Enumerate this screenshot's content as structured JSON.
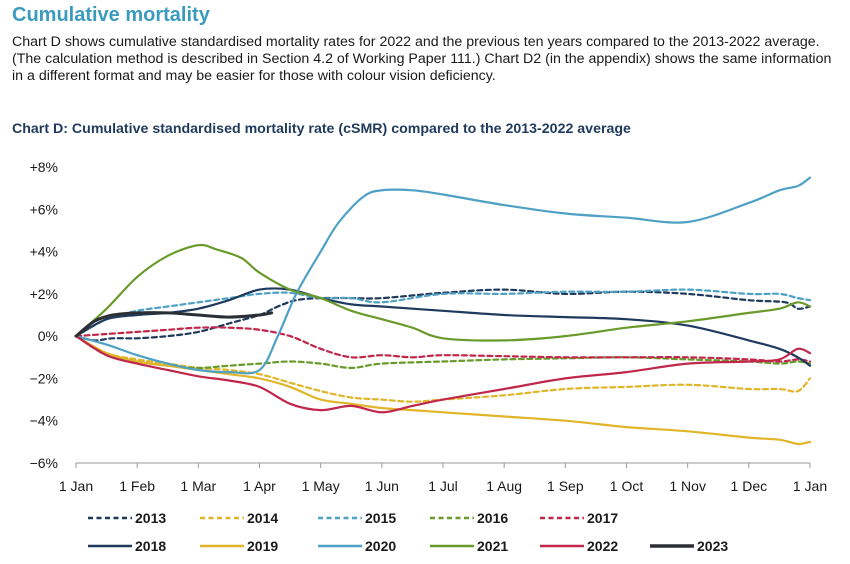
{
  "section_heading": "Cumulative mortality",
  "intro_text": "Chart D shows cumulative standardised mortality rates for 2022 and the previous ten years compared to the 2013-2022 average. (The calculation method is described in Section 4.2 of Working Paper 111.) Chart D2 (in the appendix) shows the same information in a different format and may be easier for those with colour vision deficiency.",
  "chart_data": {
    "type": "line",
    "title": "Chart D: Cumulative standardised mortality rate (cSMR) compared to the 2013-2022 average",
    "xlabel": "",
    "ylabel": "",
    "x_ticks": [
      "1 Jan",
      "1 Feb",
      "1 Mar",
      "1 Apr",
      "1 May",
      "1 Jun",
      "1 Jul",
      "1 Aug",
      "1 Sep",
      "1 Oct",
      "1 Nov",
      "1 Dec",
      "1 Jan"
    ],
    "y_ticks": [
      "+8%",
      "+6%",
      "+4%",
      "+2%",
      "0%",
      "−2%",
      "−4%",
      "−6%"
    ],
    "ylim": [
      -6,
      8
    ],
    "grid": false,
    "legend_position": "bottom",
    "x_units": "month of year (0 = 1 Jan, 12 = 1 Jan following year)",
    "series": [
      {
        "name": "2013",
        "color": "#1f3a5c",
        "dash": true,
        "x": [
          0,
          0.3,
          0.6,
          1,
          1.5,
          2,
          2.5,
          3,
          3.3,
          3.6,
          4,
          4.5,
          5,
          6,
          7,
          8,
          9,
          10,
          11,
          11.6,
          11.8,
          12
        ],
        "y": [
          0,
          -0.2,
          -0.1,
          -0.1,
          0,
          0.2,
          0.6,
          1,
          1.4,
          1.7,
          1.8,
          1.8,
          1.8,
          2.05,
          2.2,
          2.0,
          2.1,
          2.0,
          1.7,
          1.6,
          1.3,
          1.4
        ]
      },
      {
        "name": "2014",
        "color": "#e0b52a",
        "dash": true,
        "x": [
          0,
          0.5,
          1,
          1.5,
          2,
          2.5,
          3,
          3.5,
          4,
          4.5,
          5,
          5.5,
          6,
          7,
          8,
          9,
          10,
          11,
          11.5,
          11.8,
          12
        ],
        "y": [
          0,
          -0.8,
          -1.1,
          -1.3,
          -1.5,
          -1.6,
          -1.8,
          -2.2,
          -2.6,
          -2.9,
          -3.0,
          -3.1,
          -3.0,
          -2.8,
          -2.5,
          -2.4,
          -2.3,
          -2.5,
          -2.5,
          -2.6,
          -2.0
        ]
      },
      {
        "name": "2015",
        "color": "#4ea1c4",
        "dash": true,
        "x": [
          0,
          0.5,
          1,
          1.5,
          2,
          2.5,
          3,
          3.5,
          4,
          4.5,
          5,
          6,
          7,
          8,
          9,
          10,
          11,
          11.5,
          11.8,
          12
        ],
        "y": [
          0,
          0.8,
          1.2,
          1.4,
          1.6,
          1.8,
          2.0,
          2.05,
          1.8,
          1.8,
          1.6,
          2.0,
          2.0,
          2.1,
          2.1,
          2.2,
          2.0,
          2.0,
          1.8,
          1.7
        ]
      },
      {
        "name": "2016",
        "color": "#6a9a2b",
        "dash": true,
        "x": [
          0,
          0.5,
          1,
          1.5,
          2,
          2.5,
          3,
          3.5,
          4,
          4.5,
          5,
          6,
          7,
          8,
          9,
          10,
          11,
          11.5,
          11.8,
          12
        ],
        "y": [
          0,
          -0.9,
          -1.2,
          -1.4,
          -1.5,
          -1.4,
          -1.3,
          -1.2,
          -1.3,
          -1.5,
          -1.3,
          -1.2,
          -1.1,
          -1.05,
          -1.0,
          -1.1,
          -1.2,
          -1.3,
          -1.2,
          -1.3
        ]
      },
      {
        "name": "2017",
        "color": "#c0274b",
        "dash": true,
        "x": [
          0,
          0.5,
          1,
          1.5,
          2,
          2.5,
          3,
          3.5,
          4,
          4.5,
          5,
          5.5,
          6,
          7,
          8,
          9,
          10,
          11,
          11.5,
          11.8,
          12
        ],
        "y": [
          0,
          0.1,
          0.2,
          0.3,
          0.4,
          0.4,
          0.3,
          0,
          -0.6,
          -1.0,
          -0.9,
          -1.0,
          -0.9,
          -0.95,
          -1.0,
          -1.0,
          -1.0,
          -1.1,
          -1.2,
          -1.1,
          -1.2
        ]
      },
      {
        "name": "2018",
        "color": "#1f3a5c",
        "dash": false,
        "x": [
          0,
          0.5,
          1,
          1.5,
          2,
          2.5,
          3,
          3.5,
          4,
          4.5,
          5,
          6,
          7,
          8,
          9,
          10,
          11,
          11.5,
          11.8,
          12
        ],
        "y": [
          0,
          0.8,
          1.0,
          1.1,
          1.3,
          1.7,
          2.2,
          2.2,
          1.8,
          1.5,
          1.4,
          1.2,
          1.0,
          0.9,
          0.8,
          0.5,
          -0.2,
          -0.6,
          -1.0,
          -1.4
        ]
      },
      {
        "name": "2019",
        "color": "#e0b52a",
        "dash": false,
        "x": [
          0,
          0.5,
          1,
          1.5,
          2,
          2.5,
          3,
          3.5,
          4,
          4.5,
          5,
          5.5,
          6,
          7,
          8,
          9,
          10,
          11,
          11.5,
          11.8,
          12
        ],
        "y": [
          0,
          -0.8,
          -1.2,
          -1.4,
          -1.6,
          -1.8,
          -2.0,
          -2.4,
          -3.0,
          -3.2,
          -3.4,
          -3.5,
          -3.6,
          -3.8,
          -4.0,
          -4.3,
          -4.5,
          -4.8,
          -4.9,
          -5.1,
          -5.0
        ]
      },
      {
        "name": "2020",
        "color": "#4ea1c4",
        "dash": false,
        "x": [
          0,
          0.5,
          1,
          1.5,
          2,
          2.5,
          3,
          3.3,
          3.6,
          4,
          4.3,
          4.7,
          5,
          5.5,
          6,
          7,
          8,
          9,
          10,
          11,
          11.5,
          11.8,
          12
        ],
        "y": [
          0,
          -0.4,
          -0.9,
          -1.3,
          -1.6,
          -1.7,
          -1.6,
          0,
          2,
          4,
          5.4,
          6.6,
          6.9,
          6.9,
          6.7,
          6.2,
          5.8,
          5.6,
          5.4,
          6.3,
          6.9,
          7.1,
          7.5
        ]
      },
      {
        "name": "2021",
        "color": "#6a9a2b",
        "dash": false,
        "x": [
          0,
          0.5,
          1,
          1.5,
          2,
          2.3,
          2.7,
          3,
          3.5,
          4,
          4.5,
          5,
          5.5,
          6,
          7,
          8,
          9,
          10,
          11,
          11.5,
          11.8,
          12
        ],
        "y": [
          0,
          1.3,
          2.8,
          3.8,
          4.3,
          4.1,
          3.7,
          3.0,
          2.2,
          1.8,
          1.2,
          0.8,
          0.4,
          -0.1,
          -0.2,
          0.0,
          0.4,
          0.7,
          1.1,
          1.3,
          1.6,
          1.4
        ]
      },
      {
        "name": "2022",
        "color": "#c0274b",
        "dash": false,
        "x": [
          0,
          0.5,
          1,
          1.5,
          2,
          2.5,
          3,
          3.5,
          4,
          4.5,
          5,
          5.5,
          6,
          7,
          8,
          9,
          10,
          11,
          11.5,
          11.8,
          12
        ],
        "y": [
          0,
          -0.9,
          -1.3,
          -1.6,
          -1.9,
          -2.1,
          -2.4,
          -3.2,
          -3.5,
          -3.3,
          -3.6,
          -3.3,
          -3.0,
          -2.5,
          -2.0,
          -1.7,
          -1.3,
          -1.2,
          -1.1,
          -0.6,
          -0.8
        ]
      },
      {
        "name": "2023",
        "color": "#2b2f33",
        "dash": false,
        "x": [
          0,
          0.3,
          0.6,
          1,
          1.5,
          2,
          2.5,
          3,
          3.2
        ],
        "y": [
          0,
          0.7,
          1.0,
          1.1,
          1.1,
          1.0,
          0.9,
          1.0,
          1.1
        ]
      }
    ]
  }
}
